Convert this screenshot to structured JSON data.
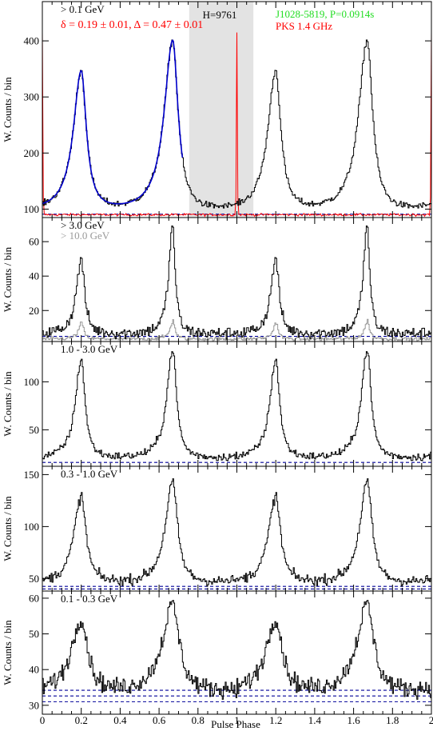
{
  "figure": {
    "xlabel": "Pulse Phase",
    "ylabel": "W. Counts / bin",
    "source_label": "J1028-5819, P=0.0914s",
    "source_color": "#22dd22",
    "radio_label": "PKS 1.4 GHz",
    "radio_color": "#ff0000",
    "fit_label": "δ = 0.19 ± 0.01, Δ = 0.47 ± 0.01",
    "fit_color": "#ff0000",
    "h_label": "H=9761",
    "offpulse_color": "#e3e3e3",
    "histogram_color": "#000000",
    "model_color": "#0000cc",
    "background_color": "#000099"
  },
  "chart_data": [
    {
      "type": "line",
      "energy_label": "> 0.1 GeV",
      "xlim": [
        0,
        2
      ],
      "ylim": [
        85,
        470
      ],
      "yticks": [
        100,
        200,
        300,
        400
      ],
      "xticks": [
        0,
        0.2,
        0.4,
        0.6,
        0.8,
        1,
        1.2,
        1.4,
        1.6,
        1.8,
        2
      ],
      "xticklabels": [],
      "offpulse_region": [
        0.755,
        1.085
      ],
      "background_levels": [
        91
      ],
      "profile": {
        "baseline": 92,
        "noise": 4,
        "peaks": [
          {
            "center": 0.2,
            "height": 343,
            "width": 0.032,
            "lead": 0.55
          },
          {
            "center": 0.67,
            "height": 400,
            "width": 0.034,
            "lead": 0.55
          }
        ]
      },
      "model_fit": {
        "x_range": [
          0,
          0.72
        ]
      },
      "radio_peak": {
        "center": 1.0,
        "height": 415
      },
      "radio_baseline": 90,
      "series": [
        {
          "name": "> 0.1 GeV",
          "color": "#000000"
        },
        {
          "name": "PKS 1.4 GHz",
          "color": "#ff0000"
        }
      ]
    },
    {
      "type": "line",
      "energy_label": "> 3.0 GeV",
      "secondary_label": "> 10.0 GeV",
      "secondary_color": "#999999",
      "xlim": [
        0,
        2
      ],
      "ylim": [
        2,
        74
      ],
      "yticks": [
        20,
        40,
        60
      ],
      "xticks": [
        0,
        0.2,
        0.4,
        0.6,
        0.8,
        1,
        1.2,
        1.4,
        1.6,
        1.8,
        2
      ],
      "xticklabels": [],
      "background_levels": [
        5
      ],
      "profile": {
        "baseline": 6,
        "noise": 2.5,
        "peaks": [
          {
            "center": 0.2,
            "height": 50,
            "width": 0.02,
            "lead": 0.5
          },
          {
            "center": 0.67,
            "height": 69,
            "width": 0.016,
            "lead": 0.5
          }
        ]
      },
      "secondary_profile": {
        "baseline": 3.4,
        "noise": 0.8,
        "peaks": [
          {
            "center": 0.2,
            "height": 13,
            "width": 0.012,
            "lead": 0.5
          },
          {
            "center": 0.67,
            "height": 14,
            "width": 0.012,
            "lead": 0.5
          }
        ]
      },
      "series": [
        {
          "name": "> 3.0 GeV",
          "color": "#000000"
        },
        {
          "name": "> 10.0 GeV",
          "color": "#999999"
        }
      ]
    },
    {
      "type": "line",
      "energy_label": "1.0 - 3.0 GeV",
      "xlim": [
        0,
        2
      ],
      "ylim": [
        12,
        142
      ],
      "yticks": [
        50,
        100
      ],
      "xticks": [
        0,
        0.2,
        0.4,
        0.6,
        0.8,
        1,
        1.2,
        1.4,
        1.6,
        1.8,
        2
      ],
      "xticklabels": [],
      "background_levels": [
        16
      ],
      "profile": {
        "baseline": 19,
        "noise": 3,
        "peaks": [
          {
            "center": 0.2,
            "height": 123,
            "width": 0.024,
            "lead": 0.5
          },
          {
            "center": 0.67,
            "height": 134,
            "width": 0.024,
            "lead": 0.5
          }
        ]
      },
      "series": [
        {
          "name": "1.0 - 3.0 GeV",
          "color": "#000000"
        }
      ]
    },
    {
      "type": "line",
      "energy_label": "0.3 - 1.0 GeV",
      "xlim": [
        0,
        2
      ],
      "ylim": [
        38,
        158
      ],
      "yticks": [
        50,
        100,
        150
      ],
      "xticks": [
        0,
        0.2,
        0.4,
        0.6,
        0.8,
        1,
        1.2,
        1.4,
        1.6,
        1.8,
        2
      ],
      "xticklabels": [],
      "background_levels": [
        40,
        42.5
      ],
      "profile": {
        "baseline": 44,
        "noise": 3.5,
        "peaks": [
          {
            "center": 0.2,
            "height": 128,
            "width": 0.03,
            "lead": 0.5
          },
          {
            "center": 0.67,
            "height": 143,
            "width": 0.03,
            "lead": 0.5
          }
        ]
      },
      "series": [
        {
          "name": "0.3 - 1.0 GeV",
          "color": "#000000"
        }
      ]
    },
    {
      "type": "line",
      "energy_label": "0.1 - 0.3 GeV",
      "xlim": [
        0,
        2
      ],
      "ylim": [
        27.5,
        62
      ],
      "yticks": [
        30,
        40,
        50,
        60
      ],
      "xticks": [
        0,
        0.2,
        0.4,
        0.6,
        0.8,
        1,
        1.2,
        1.4,
        1.6,
        1.8,
        2
      ],
      "xticklabels": [
        "0",
        "0.2",
        "0.4",
        "0.6",
        "0.8",
        "1",
        "1.2",
        "1.4",
        "1.6",
        "1.8",
        "2"
      ],
      "background_levels": [
        31,
        32.6,
        34.2
      ],
      "profile": {
        "baseline": 33,
        "noise": 1.8,
        "peaks": [
          {
            "center": 0.2,
            "height": 54,
            "width": 0.04,
            "lead": 0.55
          },
          {
            "center": 0.67,
            "height": 58,
            "width": 0.042,
            "lead": 0.55
          }
        ]
      },
      "series": [
        {
          "name": "0.1 - 0.3 GeV",
          "color": "#000000"
        }
      ]
    }
  ]
}
